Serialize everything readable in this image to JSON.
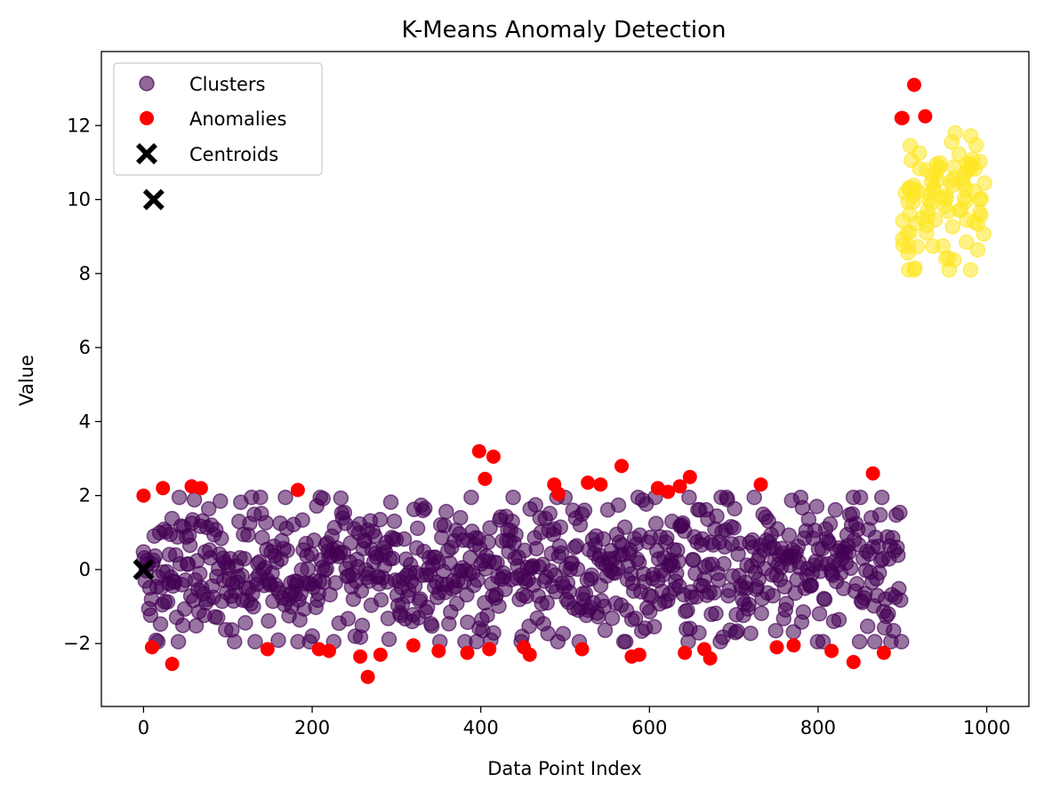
{
  "chart_data": {
    "type": "scatter",
    "title": "K-Means Anomaly Detection",
    "xlabel": "Data Point Index",
    "ylabel": "Value",
    "xlim": [
      -50,
      1050
    ],
    "ylim": [
      -3.7,
      14.0
    ],
    "xticks": [
      0,
      200,
      400,
      600,
      800,
      1000
    ],
    "yticks": [
      -2,
      0,
      2,
      4,
      6,
      8,
      10,
      12
    ],
    "grid": false,
    "legend": {
      "placement": "top-left",
      "entries": [
        {
          "label": "Clusters",
          "marker": "circle",
          "color": "#440154",
          "alpha": 0.6
        },
        {
          "label": "Anomalies",
          "marker": "circle",
          "color": "#ff0000"
        },
        {
          "label": "Centroids",
          "marker": "X",
          "color": "#000000"
        }
      ]
    },
    "colors": {
      "cluster_0": "#440154",
      "cluster_1": "#fde725",
      "anomalies": "#ff0000",
      "centroids": "#000000"
    },
    "series": [
      {
        "name": "Clusters",
        "description_of_generation": "",
        "cluster_0": {
          "x_range": [
            0,
            899
          ],
          "y_mean": 0.0,
          "y_spread": 1.0,
          "count": 850
        },
        "cluster_1": {
          "x_range": [
            900,
            999
          ],
          "y_mean": 10.0,
          "y_spread": 1.0,
          "count": 96
        }
      },
      {
        "name": "Anomalies",
        "points": [
          [
            0,
            2.0
          ],
          [
            10,
            -2.1
          ],
          [
            23,
            2.2
          ],
          [
            34,
            -2.55
          ],
          [
            57,
            2.25
          ],
          [
            68,
            2.2
          ],
          [
            147,
            -2.15
          ],
          [
            183,
            2.15
          ],
          [
            208,
            -2.15
          ],
          [
            220,
            -2.2
          ],
          [
            257,
            -2.35
          ],
          [
            266,
            -2.9
          ],
          [
            281,
            -2.3
          ],
          [
            320,
            -2.05
          ],
          [
            350,
            -2.2
          ],
          [
            384,
            -2.25
          ],
          [
            398,
            3.2
          ],
          [
            405,
            2.45
          ],
          [
            410,
            -2.15
          ],
          [
            415,
            3.05
          ],
          [
            451,
            -2.1
          ],
          [
            458,
            -2.3
          ],
          [
            487,
            2.3
          ],
          [
            492,
            2.05
          ],
          [
            520,
            -2.15
          ],
          [
            527,
            2.35
          ],
          [
            542,
            2.3
          ],
          [
            567,
            2.8
          ],
          [
            579,
            -2.35
          ],
          [
            588,
            -2.3
          ],
          [
            610,
            2.2
          ],
          [
            622,
            2.1
          ],
          [
            636,
            2.25
          ],
          [
            642,
            -2.25
          ],
          [
            648,
            2.5
          ],
          [
            665,
            -2.15
          ],
          [
            672,
            -2.4
          ],
          [
            732,
            2.3
          ],
          [
            751,
            -2.1
          ],
          [
            771,
            -2.05
          ],
          [
            816,
            -2.2
          ],
          [
            842,
            -2.5
          ],
          [
            865,
            2.6
          ],
          [
            878,
            -2.25
          ],
          [
            899,
            12.2
          ],
          [
            900,
            12.2
          ],
          [
            914,
            13.1
          ],
          [
            927,
            12.25
          ]
        ]
      },
      {
        "name": "Centroids",
        "points": [
          [
            0,
            0.0
          ],
          [
            12,
            10.0
          ]
        ]
      }
    ]
  }
}
